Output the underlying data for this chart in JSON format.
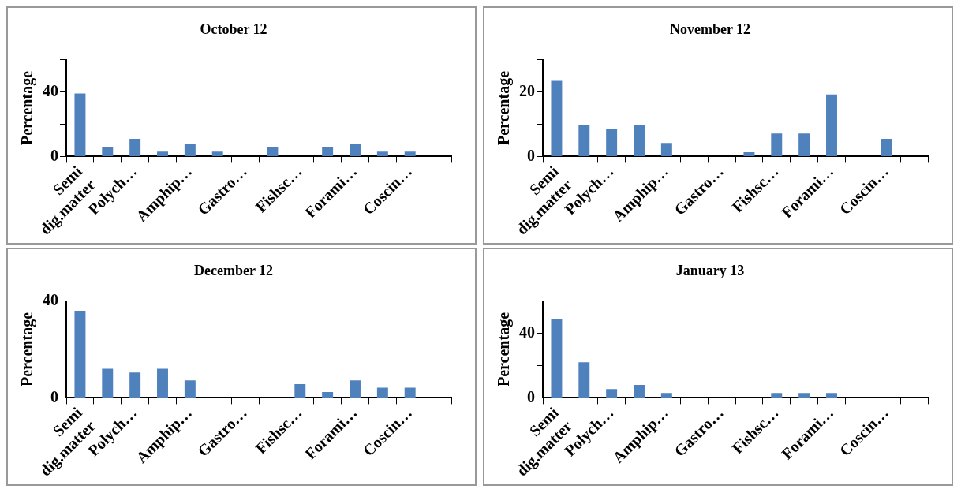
{
  "chart_data": [
    {
      "type": "bar",
      "title": "October 12",
      "ylabel": "Percentage",
      "categories": [
        "Semi dig.matter",
        null,
        "Polych…",
        null,
        "Amphip…",
        null,
        "Gastro…",
        null,
        "Fishsc…",
        null,
        "Forami…",
        null,
        "Coscin…",
        null
      ],
      "values": [
        39,
        6,
        11,
        3,
        8,
        3,
        0,
        6,
        0,
        6,
        8,
        3,
        3,
        0
      ],
      "color": "#4f81bd",
      "ylim": [
        0,
        60
      ],
      "yticks": [
        0,
        {
          "value": 20,
          "label": null
        },
        40,
        {
          "value": 60,
          "label": null
        }
      ],
      "grid": false,
      "legend": false
    },
    {
      "type": "bar",
      "title": "November 12",
      "ylabel": "Percentage",
      "categories": [
        "Semi dig.matter",
        null,
        "Polych…",
        null,
        "Amphip…",
        null,
        "Gastro…",
        null,
        "Fishsc…",
        null,
        "Forami…",
        null,
        "Coscin…",
        null
      ],
      "values": [
        23.4,
        9.7,
        8.4,
        9.7,
        4.2,
        0,
        0,
        1.3,
        7.1,
        7.1,
        19.2,
        0,
        5.5,
        0
      ],
      "color": "#4f81bd",
      "ylim": [
        0,
        30
      ],
      "yticks": [
        0,
        {
          "value": 10,
          "label": null
        },
        20,
        {
          "value": 30,
          "label": null
        }
      ],
      "grid": false,
      "legend": false
    },
    {
      "type": "bar",
      "title": "December 12",
      "ylabel": "Percentage",
      "categories": [
        "Semi dig.matter",
        null,
        "Polych…",
        null,
        "Amphip…",
        null,
        "Gastro…",
        null,
        "Fishsc…",
        null,
        "Forami…",
        null,
        "Coscin…",
        null
      ],
      "values": [
        36,
        12,
        10.5,
        12,
        7.2,
        0,
        0,
        0,
        5.7,
        2.4,
        7.2,
        4.2,
        4.2,
        0
      ],
      "color": "#4f81bd",
      "ylim": [
        0,
        40
      ],
      "yticks": [
        0,
        {
          "value": 20,
          "label": null
        },
        40
      ],
      "grid": false,
      "legend": false
    },
    {
      "type": "bar",
      "title": "January 13",
      "ylabel": "Percentage",
      "categories": [
        "Semi dig.matter",
        null,
        "Polych…",
        null,
        "Amphip…",
        null,
        "Gastro…",
        null,
        "Fishsc…",
        null,
        "Forami…",
        null,
        "Coscin…",
        null
      ],
      "values": [
        48.6,
        22,
        5.5,
        8,
        3,
        0,
        0,
        0,
        3,
        3,
        3,
        0,
        0,
        0
      ],
      "color": "#4f81bd",
      "ylim": [
        0,
        60
      ],
      "yticks": [
        0,
        {
          "value": 20,
          "label": null
        },
        40,
        {
          "value": 60,
          "label": null
        }
      ],
      "grid": false,
      "legend": false
    }
  ]
}
